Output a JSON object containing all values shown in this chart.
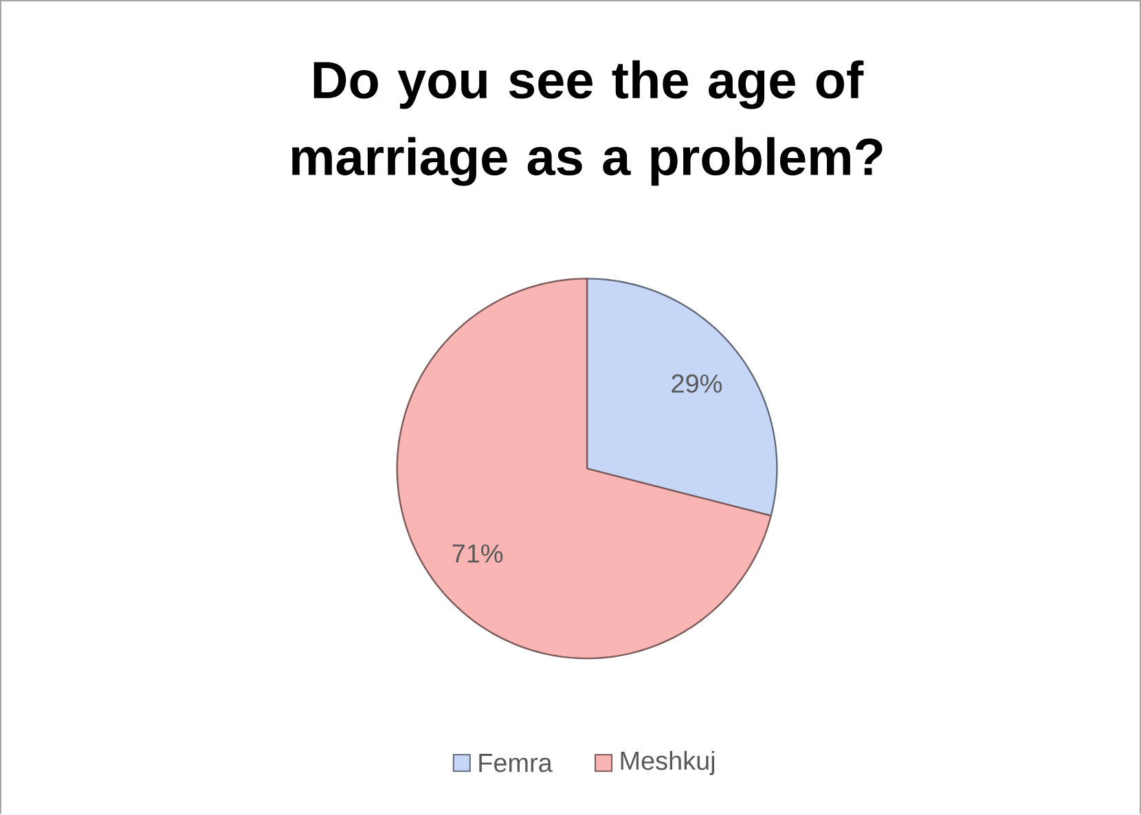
{
  "chart_data": {
    "type": "pie",
    "title": "Do you see the age of marriage as a problem?",
    "categories": [
      "Femra",
      "Meshkuj"
    ],
    "values": [
      29,
      71
    ],
    "value_labels": [
      "29%",
      "71%"
    ],
    "colors": [
      "#c6d6f6",
      "#f9b4b4"
    ],
    "legend": "bottom"
  }
}
